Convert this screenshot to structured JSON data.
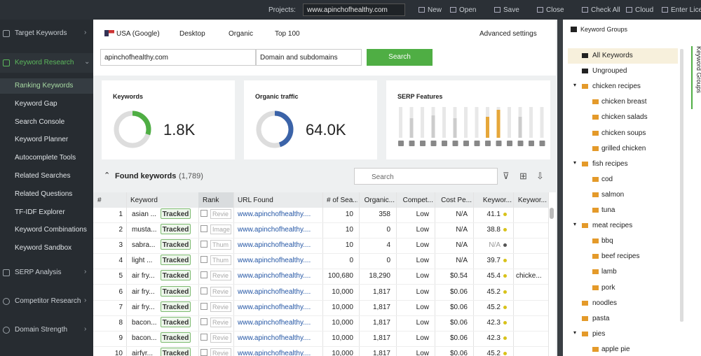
{
  "toolbar": {
    "projects_label": "Projects:",
    "project": "www.apinchofhealthy.com",
    "buttons": [
      "New",
      "Open",
      "Save",
      "Close",
      "Check All",
      "Cloud",
      "Enter Licen"
    ]
  },
  "sidebar": {
    "sections": [
      {
        "label": "Target Keywords"
      },
      {
        "label": "Keyword Research",
        "items": [
          "Ranking Keywords",
          "Keyword Gap",
          "Search Console",
          "Keyword Planner",
          "Autocomplete Tools",
          "Related Searches",
          "Related Questions",
          "TF-IDF Explorer",
          "Keyword Combinations",
          "Keyword Sandbox"
        ]
      },
      {
        "label": "SERP Analysis"
      },
      {
        "label": "Competitor Research"
      },
      {
        "label": "Domain Strength"
      }
    ]
  },
  "filters": {
    "country": "USA (Google)",
    "device": "Desktop",
    "type": "Organic",
    "depth": "Top 100",
    "advanced": "Advanced settings"
  },
  "search": {
    "domain": "apinchofhealthy.com",
    "scope": "Domain and subdomains",
    "button": "Search"
  },
  "cards": [
    {
      "title": "Keywords",
      "value": "1.8K"
    },
    {
      "title": "Organic traffic",
      "value": "64.0K"
    },
    {
      "title": "SERP Features"
    }
  ],
  "found": {
    "title": "Found keywords",
    "count": "(1,789)",
    "search_placeholder": "Search"
  },
  "table": {
    "headers": [
      "#",
      "Keyword",
      "Rank",
      "URL Found",
      "# of Sea...",
      "Organic...",
      "Compet...",
      "Cost Pe...",
      "Keywor...",
      "Keywor..."
    ],
    "rows": [
      {
        "n": "1",
        "keyword": "asian ...",
        "status": "Tracked",
        "serp": "Revie",
        "url": "www.apinchofhealthy....",
        "searches": "10",
        "traffic": "358",
        "competition": "Low",
        "cost": "N/A",
        "kei": "41.1",
        "dot": "#d8c21a"
      },
      {
        "n": "2",
        "keyword": "musta...",
        "status": "Tracked",
        "serp": "Image",
        "url": "www.apinchofhealthy....",
        "searches": "10",
        "traffic": "0",
        "competition": "Low",
        "cost": "N/A",
        "kei": "38.8",
        "dot": "#d8c21a"
      },
      {
        "n": "3",
        "keyword": "sabra...",
        "status": "Tracked",
        "serp": "Thum",
        "url": "www.apinchofhealthy....",
        "searches": "10",
        "traffic": "4",
        "competition": "Low",
        "cost": "N/A",
        "kei": "N/A",
        "dot": "#555555"
      },
      {
        "n": "4",
        "keyword": "light ...",
        "status": "Tracked",
        "serp": "Thum",
        "url": "www.apinchofhealthy....",
        "searches": "0",
        "traffic": "0",
        "competition": "Low",
        "cost": "N/A",
        "kei": "39.7",
        "dot": "#d8c21a"
      },
      {
        "n": "5",
        "keyword": "air fry...",
        "status": "Tracked",
        "serp": "Revie",
        "url": "www.apinchofhealthy....",
        "searches": "100,680",
        "traffic": "18,290",
        "competition": "Low",
        "cost": "$0.54",
        "kei": "45.4",
        "dot": "#d8c21a",
        "group": "chicke..."
      },
      {
        "n": "6",
        "keyword": "air fry...",
        "status": "Tracked",
        "serp": "Revie",
        "url": "www.apinchofhealthy....",
        "searches": "10,000",
        "traffic": "1,817",
        "competition": "Low",
        "cost": "$0.06",
        "kei": "45.2",
        "dot": "#d8c21a"
      },
      {
        "n": "7",
        "keyword": "air fry...",
        "status": "Tracked",
        "serp": "Revie",
        "url": "www.apinchofhealthy....",
        "searches": "10,000",
        "traffic": "1,817",
        "competition": "Low",
        "cost": "$0.06",
        "kei": "45.2",
        "dot": "#d8c21a"
      },
      {
        "n": "8",
        "keyword": "bacon...",
        "status": "Tracked",
        "serp": "Revie",
        "url": "www.apinchofhealthy....",
        "searches": "10,000",
        "traffic": "1,817",
        "competition": "Low",
        "cost": "$0.06",
        "kei": "42.3",
        "dot": "#d8c21a"
      },
      {
        "n": "9",
        "keyword": "bacon...",
        "status": "Tracked",
        "serp": "Revie",
        "url": "www.apinchofhealthy....",
        "searches": "10,000",
        "traffic": "1,817",
        "competition": "Low",
        "cost": "$0.06",
        "kei": "42.3",
        "dot": "#d8c21a"
      },
      {
        "n": "10",
        "keyword": "airfyr...",
        "status": "Tracked",
        "serp": "Revie",
        "url": "www.apinchofhealthy....",
        "searches": "10,000",
        "traffic": "1,817",
        "competition": "Low",
        "cost": "$0.06",
        "kei": "45.2",
        "dot": "#d8c21a"
      }
    ]
  },
  "groups": {
    "title": "Keyword Groups",
    "tab": "Keyword Groups",
    "fixed": [
      "All Keywords",
      "Ungrouped"
    ],
    "folders": [
      {
        "name": "chicken recipes",
        "children": [
          "chicken breast",
          "chicken salads",
          "chicken soups",
          "grilled chicken"
        ]
      },
      {
        "name": "fish recipes",
        "children": [
          "cod",
          "salmon",
          "tuna"
        ]
      },
      {
        "name": "meat recipes",
        "children": [
          "bbq",
          "beef recipes",
          "lamb",
          "pork"
        ]
      },
      {
        "name": "noodles",
        "children": []
      },
      {
        "name": "pasta",
        "children": []
      },
      {
        "name": "pies",
        "children": [
          "apple pie"
        ]
      }
    ]
  }
}
